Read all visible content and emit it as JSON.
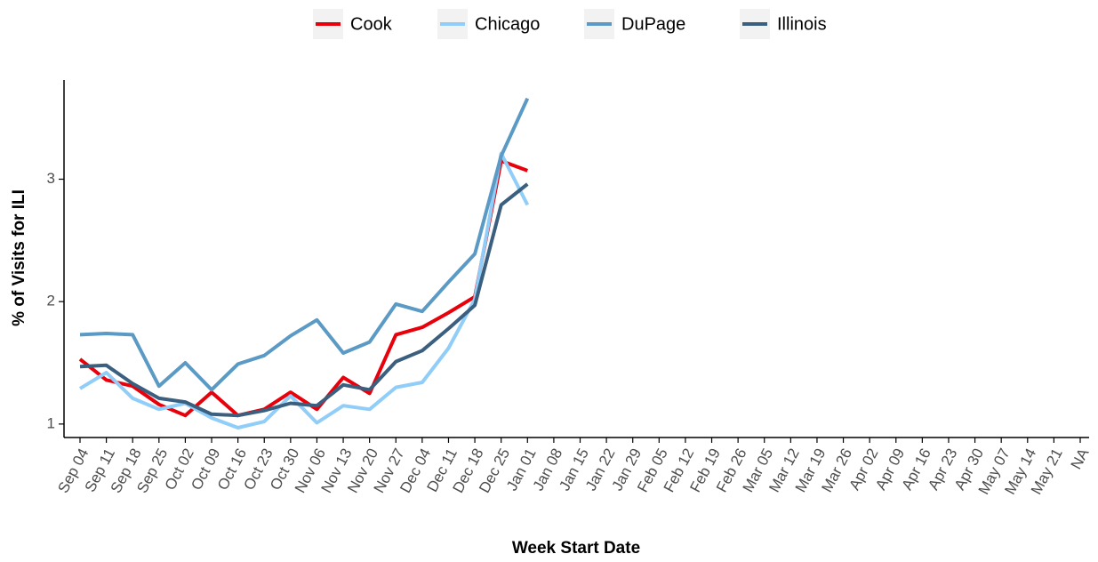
{
  "chart_data": {
    "type": "line",
    "x_label": "Week Start Date",
    "y_label": "% of Visits for ILI",
    "categories": [
      "Sep 04",
      "Sep 11",
      "Sep 18",
      "Sep 25",
      "Oct 02",
      "Oct 09",
      "Oct 16",
      "Oct 23",
      "Oct 30",
      "Nov 06",
      "Nov 13",
      "Nov 20",
      "Nov 27",
      "Dec 04",
      "Dec 11",
      "Dec 18",
      "Dec 25",
      "Jan 01",
      "Jan 08",
      "Jan 15",
      "Jan 22",
      "Jan 29",
      "Feb 05",
      "Feb 12",
      "Feb 19",
      "Feb 26",
      "Mar 05",
      "Mar 12",
      "Mar 19",
      "Mar 26",
      "Apr 02",
      "Apr 09",
      "Apr 16",
      "Apr 23",
      "Apr 30",
      "May 07",
      "May 14",
      "May 21",
      "NA"
    ],
    "series": [
      {
        "name": "Cook",
        "color": "#e8000b",
        "values": [
          1.53,
          1.36,
          1.31,
          1.16,
          1.07,
          1.26,
          1.07,
          1.12,
          1.26,
          1.12,
          1.38,
          1.25,
          1.73,
          1.79,
          1.91,
          2.04,
          3.15,
          3.07,
          null,
          null,
          null,
          null,
          null,
          null,
          null,
          null,
          null,
          null,
          null,
          null,
          null,
          null,
          null,
          null,
          null,
          null,
          null,
          null,
          null
        ]
      },
      {
        "name": "Chicago",
        "color": "#90cdf8",
        "values": [
          1.29,
          1.42,
          1.21,
          1.12,
          1.17,
          1.05,
          0.97,
          1.02,
          1.23,
          1.01,
          1.15,
          1.12,
          1.3,
          1.34,
          1.62,
          2.02,
          3.21,
          2.79,
          null,
          null,
          null,
          null,
          null,
          null,
          null,
          null,
          null,
          null,
          null,
          null,
          null,
          null,
          null,
          null,
          null,
          null,
          null,
          null,
          null
        ]
      },
      {
        "name": "DuPage",
        "color": "#5b9ac4",
        "values": [
          1.73,
          1.74,
          1.73,
          1.31,
          1.5,
          1.28,
          1.49,
          1.56,
          1.72,
          1.85,
          1.58,
          1.67,
          1.98,
          1.92,
          2.16,
          2.39,
          3.19,
          3.66,
          null,
          null,
          null,
          null,
          null,
          null,
          null,
          null,
          null,
          null,
          null,
          null,
          null,
          null,
          null,
          null,
          null,
          null,
          null,
          null,
          null
        ]
      },
      {
        "name": "Illinois",
        "color": "#3b5f7f",
        "values": [
          1.47,
          1.48,
          1.33,
          1.21,
          1.18,
          1.08,
          1.07,
          1.11,
          1.17,
          1.15,
          1.32,
          1.28,
          1.51,
          1.6,
          1.78,
          1.97,
          2.79,
          2.96,
          null,
          null,
          null,
          null,
          null,
          null,
          null,
          null,
          null,
          null,
          null,
          null,
          null,
          null,
          null,
          null,
          null,
          null,
          null,
          null,
          null
        ]
      }
    ],
    "ylim": [
      0.89,
      3.81
    ],
    "yticks": [
      1,
      2,
      3
    ],
    "legend": "top"
  }
}
